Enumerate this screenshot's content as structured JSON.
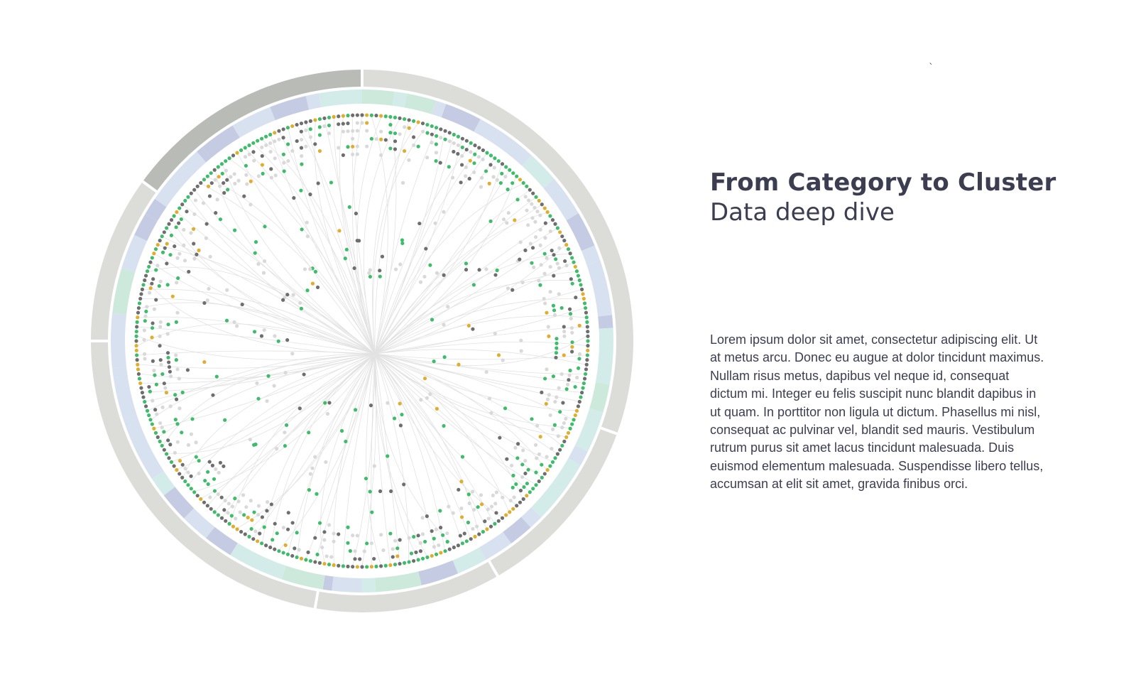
{
  "header": {
    "title": "From Category to Cluster",
    "subtitle": "Data deep dive",
    "stray_mark": "`"
  },
  "body": {
    "paragraph": "Lorem ipsum dolor sit amet, consectetur adipiscing elit. Ut at metus arcu. Donec eu augue at dolor tincidunt maximus. Nullam risus metus, dapibus vel neque id, consequat dictum mi. Integer eu felis suscipit nunc blandit dapibus in ut quam. In porttitor non ligula ut dictum. Phasellus mi nisl, consequat ac pulvinar vel, blandit sed mauris. Vestibulum rutrum purus sit amet lacus tincidunt malesuada. Duis euismod elementum malesuada. Suspendisse libero tellus, accumsan at elit sit amet, gravida finibus orci."
  },
  "diagram": {
    "type": "radial-dendrogram",
    "colors": {
      "outer_ring_light": "#dcdcd8",
      "outer_ring_dark": "#b9bbb6",
      "band_blue": "#d7e1ef",
      "band_teal": "#d3ecea",
      "band_purple": "#c5cbe2",
      "band_green": "#cde9dc",
      "link": "#e2e2e2",
      "node_green": "#3dbd6a",
      "node_dark": "#6e6e6e",
      "node_gold": "#e0ad2c",
      "node_light": "#d9d9d9",
      "text": "#3d3d52"
    }
  }
}
